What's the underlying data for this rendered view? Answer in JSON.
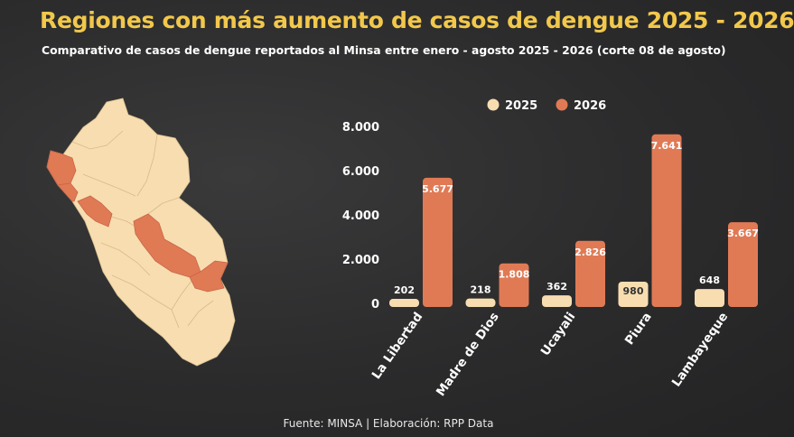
{
  "title": "Regiones con más aumento de casos de dengue 2025 - 2026",
  "subtitle": "Comparativo de casos de dengue reportados al Minsa entre enero - agosto 2025 - 2026 (corte 08 de agosto)",
  "footer": "Fuente: MINSA | Elaboración: RPP Data",
  "colors": {
    "title": "#f2c84b",
    "series_2025": "#f7ddb0",
    "series_2026": "#e07a55",
    "map_base": "#f7ddb0",
    "map_highlight": "#e07a55"
  },
  "chart_data": {
    "type": "bar",
    "categories": [
      "La Libertad",
      "Madre de Dios",
      "Ucayali",
      "Piura",
      "Lambayeque"
    ],
    "series": [
      {
        "name": "2025",
        "values": [
          202,
          218,
          362,
          980,
          648
        ],
        "labels": [
          "202",
          "218",
          "362",
          "980",
          "648"
        ]
      },
      {
        "name": "2026",
        "values": [
          5677,
          1808,
          2826,
          7641,
          3667
        ],
        "labels": [
          "5.677",
          "1.808",
          "2.826",
          "7.641",
          "3.667"
        ]
      }
    ],
    "yticks": [
      0,
      2000,
      4000,
      6000,
      8000
    ],
    "ytick_labels": [
      "0",
      "2.000",
      "4.000",
      "6.000",
      "8.000"
    ],
    "ylim": [
      0,
      8000
    ],
    "legend_position": "top",
    "grid": false
  }
}
